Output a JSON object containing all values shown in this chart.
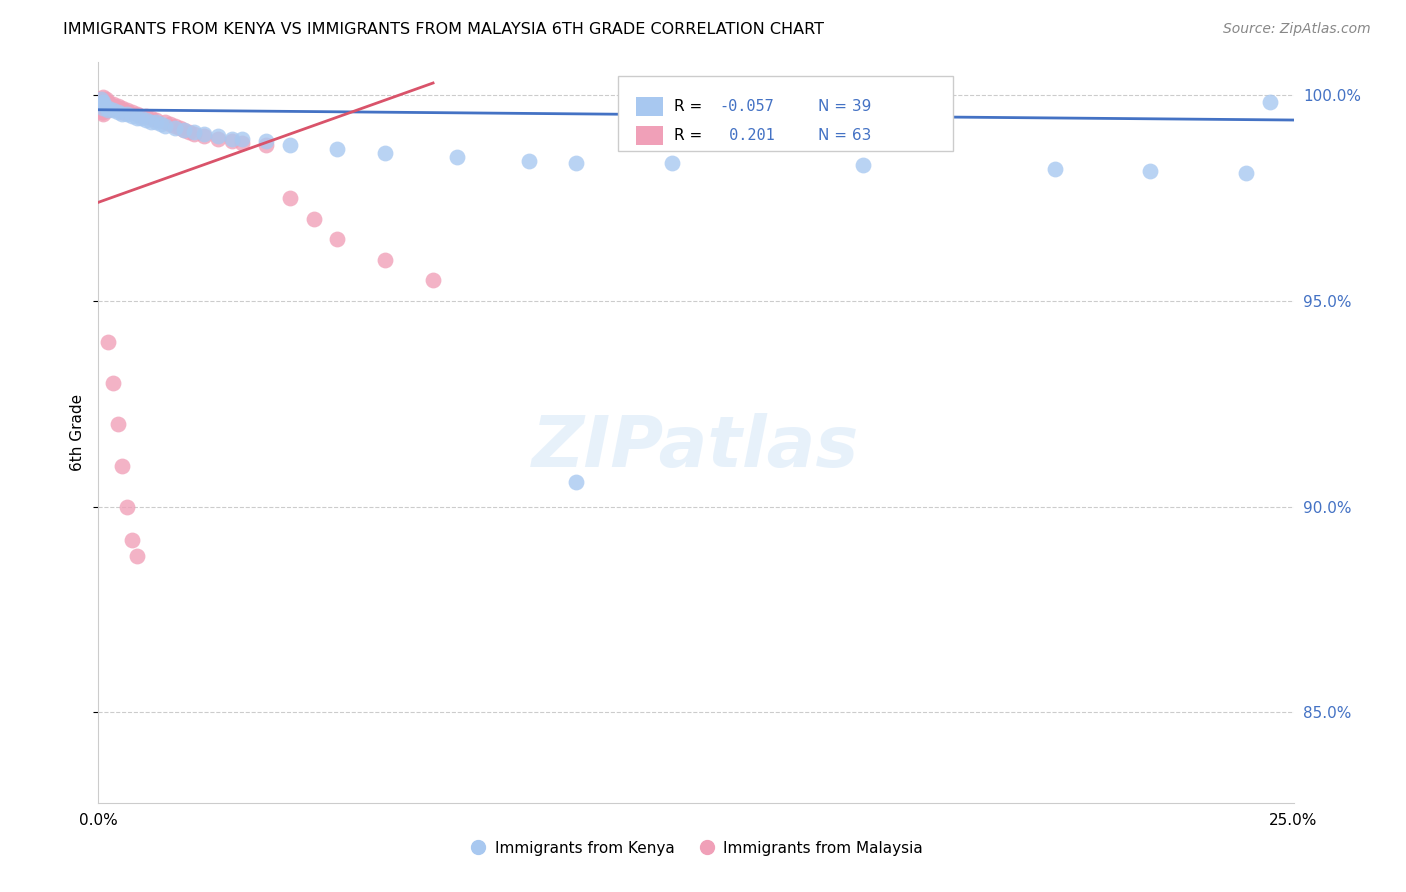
{
  "title": "IMMIGRANTS FROM KENYA VS IMMIGRANTS FROM MALAYSIA 6TH GRADE CORRELATION CHART",
  "source": "Source: ZipAtlas.com",
  "ylabel": "6th Grade",
  "xmin": 0.0,
  "xmax": 0.25,
  "ymin": 0.828,
  "ymax": 1.008,
  "yticks": [
    0.85,
    0.9,
    0.95,
    1.0
  ],
  "ytick_labels": [
    "85.0%",
    "90.0%",
    "95.0%",
    "100.0%"
  ],
  "kenya_R": "-0.057",
  "kenya_N": "39",
  "malaysia_R": "0.201",
  "malaysia_N": "63",
  "kenya_color": "#a8c8f0",
  "malaysia_color": "#f0a0b8",
  "kenya_line_color": "#4472c4",
  "malaysia_line_color": "#d9536a",
  "kenya_x": [
    0.0005,
    0.001,
    0.001,
    0.001,
    0.002,
    0.002,
    0.003,
    0.004,
    0.005,
    0.006,
    0.007,
    0.008,
    0.009,
    0.01,
    0.011,
    0.012,
    0.013,
    0.014,
    0.016,
    0.018,
    0.02,
    0.022,
    0.025,
    0.028,
    0.03,
    0.035,
    0.04,
    0.05,
    0.06,
    0.075,
    0.09,
    0.1,
    0.12,
    0.16,
    0.2,
    0.22,
    0.24,
    0.245,
    0.1
  ],
  "kenya_y": [
    0.999,
    0.9985,
    0.998,
    0.997,
    0.997,
    0.9965,
    0.9965,
    0.996,
    0.9955,
    0.9955,
    0.995,
    0.9945,
    0.9945,
    0.994,
    0.9935,
    0.9935,
    0.993,
    0.9925,
    0.992,
    0.9915,
    0.991,
    0.9905,
    0.99,
    0.9895,
    0.9895,
    0.989,
    0.988,
    0.987,
    0.986,
    0.985,
    0.984,
    0.9835,
    0.9835,
    0.983,
    0.982,
    0.9815,
    0.981,
    0.9985,
    0.906
  ],
  "malaysia_x": [
    0.0002,
    0.0003,
    0.0004,
    0.0005,
    0.0006,
    0.0007,
    0.0008,
    0.001,
    0.001,
    0.001,
    0.001,
    0.001,
    0.001,
    0.001,
    0.001,
    0.001,
    0.0015,
    0.002,
    0.002,
    0.002,
    0.002,
    0.002,
    0.003,
    0.003,
    0.003,
    0.004,
    0.004,
    0.004,
    0.005,
    0.005,
    0.005,
    0.006,
    0.006,
    0.007,
    0.008,
    0.009,
    0.01,
    0.011,
    0.012,
    0.014,
    0.015,
    0.016,
    0.017,
    0.018,
    0.019,
    0.02,
    0.022,
    0.025,
    0.028,
    0.03,
    0.035,
    0.04,
    0.045,
    0.05,
    0.06,
    0.07,
    0.002,
    0.003,
    0.004,
    0.005,
    0.006,
    0.007,
    0.008
  ],
  "malaysia_y": [
    0.999,
    0.9985,
    0.998,
    0.9975,
    0.997,
    0.9965,
    0.996,
    0.9995,
    0.999,
    0.9985,
    0.998,
    0.9975,
    0.997,
    0.9965,
    0.996,
    0.9955,
    0.999,
    0.9985,
    0.998,
    0.9975,
    0.997,
    0.9965,
    0.998,
    0.9975,
    0.997,
    0.9975,
    0.997,
    0.9965,
    0.997,
    0.9965,
    0.996,
    0.9965,
    0.996,
    0.996,
    0.9955,
    0.995,
    0.995,
    0.9945,
    0.994,
    0.9935,
    0.993,
    0.9925,
    0.992,
    0.9915,
    0.991,
    0.9905,
    0.99,
    0.9895,
    0.989,
    0.9885,
    0.988,
    0.975,
    0.97,
    0.965,
    0.96,
    0.955,
    0.94,
    0.93,
    0.92,
    0.91,
    0.9,
    0.892,
    0.888
  ]
}
